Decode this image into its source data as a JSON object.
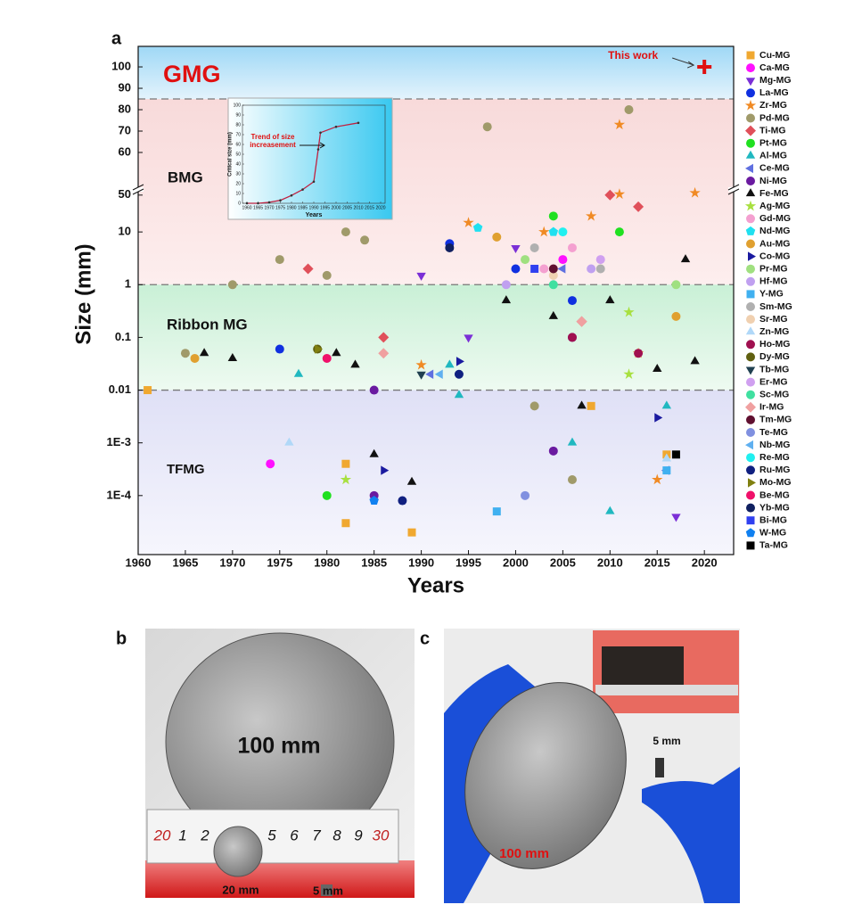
{
  "chart_data": {
    "type": "scatter",
    "panel": "a",
    "xlabel": "Years",
    "ylabel": "Size (mm)",
    "xlim": [
      1960,
      2023.1
    ],
    "xticks": [
      1960,
      1965,
      1970,
      1975,
      1980,
      1985,
      1990,
      1995,
      2000,
      2005,
      2010,
      2015,
      2020
    ],
    "ylim": [
      7.6e-06,
      58
    ],
    "yscale": "log",
    "yticks": [
      {
        "value": 0.0001,
        "label": "1E-4"
      },
      {
        "value": 0.001,
        "label": "1E-3"
      },
      0.01,
      0.1,
      1,
      10
    ],
    "ylim_upper": [
      43.75,
      109.6
    ],
    "yticks_upper": [
      50,
      60,
      70,
      80,
      90,
      100
    ],
    "dashed_lines": [
      85,
      1,
      0.01
    ],
    "regions": [
      "GMG",
      "BMG",
      "Ribbon MG",
      "TFMG"
    ],
    "highlight": {
      "label": "This work",
      "x": 2020,
      "y": 100,
      "color": "#e01010"
    },
    "series": [
      {
        "name": "Cu-MG",
        "color": "#f0a830",
        "marker": "square",
        "x": [
          1961,
          1982,
          1982,
          1989,
          2008,
          2016
        ],
        "values": [
          0.01,
          0.0004,
          3e-05,
          2e-05,
          0.005,
          0.0006
        ]
      },
      {
        "name": "Ca-MG",
        "color": "#ff10ff",
        "marker": "circle",
        "x": [
          1974,
          2005
        ],
        "values": [
          0.0004,
          3
        ]
      },
      {
        "name": "Mg-MG",
        "color": "#7b2fd6",
        "marker": "triangle-down",
        "x": [
          1990,
          1995,
          2000,
          2017
        ],
        "values": [
          1.5,
          0.1,
          5,
          4e-05
        ]
      },
      {
        "name": "La-MG",
        "color": "#1030e0",
        "marker": "circle",
        "x": [
          1975,
          1993,
          2000,
          2006
        ],
        "values": [
          0.06,
          6,
          2,
          0.5
        ]
      },
      {
        "name": "Zr-MG",
        "color": "#f08a24",
        "marker": "star",
        "x": [
          1990,
          1995,
          2003,
          2008,
          2011,
          2013,
          2019,
          2015,
          2011
        ],
        "values": [
          0.03,
          15,
          10,
          20,
          73,
          0.05,
          55,
          0.0002,
          52
        ]
      },
      {
        "name": "Pd-MG",
        "color": "#a09a6a",
        "marker": "circle",
        "x": [
          1965,
          1970,
          1975,
          1980,
          1982,
          1984,
          1997,
          2012,
          2002,
          2006
        ],
        "values": [
          0.05,
          1,
          3,
          1.5,
          10,
          7,
          72,
          80,
          0.005,
          0.0002
        ]
      },
      {
        "name": "Ti-MG",
        "color": "#e0505a",
        "marker": "diamond",
        "x": [
          1978,
          1986,
          2007,
          2010,
          2013
        ],
        "values": [
          2,
          0.1,
          0.2,
          50,
          30
        ]
      },
      {
        "name": "Pt-MG",
        "color": "#20e020",
        "marker": "circle",
        "x": [
          1980,
          2004,
          2011
        ],
        "values": [
          0.0001,
          20,
          10
        ]
      },
      {
        "name": "Al-MG",
        "color": "#20b8c0",
        "marker": "triangle-up",
        "x": [
          1977,
          1993,
          1994,
          2006,
          2010,
          2016
        ],
        "values": [
          0.02,
          0.03,
          0.008,
          0.001,
          5e-05,
          0.005
        ]
      },
      {
        "name": "Ce-MG",
        "color": "#6070e0",
        "marker": "triangle-left",
        "x": [
          1991,
          2005,
          2016
        ],
        "values": [
          0.02,
          2,
          0.0003
        ]
      },
      {
        "name": "Ni-MG",
        "color": "#6a1aa0",
        "marker": "circle",
        "x": [
          1985,
          1985,
          2004,
          2006
        ],
        "values": [
          0.01,
          0.0001,
          0.0007,
          0.1
        ]
      },
      {
        "name": "Fe-MG",
        "color": "#111111",
        "marker": "triangle-up",
        "x": [
          1967,
          1970,
          1981,
          1983,
          1985,
          1989,
          1999,
          2004,
          2007,
          2010,
          2015,
          2018,
          2019
        ],
        "values": [
          0.05,
          0.04,
          0.05,
          0.03,
          0.0006,
          0.00018,
          0.5,
          0.25,
          0.005,
          0.5,
          0.025,
          3,
          0.035
        ]
      },
      {
        "name": "Ag-MG",
        "color": "#a8e040",
        "marker": "star",
        "x": [
          1982,
          2012,
          2012
        ],
        "values": [
          0.0002,
          0.3,
          0.02
        ]
      },
      {
        "name": "Gd-MG",
        "color": "#f4a0d0",
        "marker": "circle",
        "x": [
          2003,
          2006
        ],
        "values": [
          2,
          5
        ]
      },
      {
        "name": "Nd-MG",
        "color": "#20e0f0",
        "marker": "pentagon",
        "x": [
          1996,
          2004
        ],
        "values": [
          12,
          10
        ]
      },
      {
        "name": "Au-MG",
        "color": "#e0a030",
        "marker": "circle",
        "x": [
          1966,
          1998,
          2017
        ],
        "values": [
          0.04,
          8,
          0.25
        ]
      },
      {
        "name": "Co-MG",
        "color": "#1a1aa0",
        "marker": "triangle-right",
        "x": [
          1986,
          1994,
          2015
        ],
        "values": [
          0.0003,
          0.035,
          0.003
        ]
      },
      {
        "name": "Pr-MG",
        "color": "#a0e080",
        "marker": "circle",
        "x": [
          2001,
          2017
        ],
        "values": [
          3,
          1
        ]
      },
      {
        "name": "Hf-MG",
        "color": "#c0a0f0",
        "marker": "circle",
        "x": [
          1999,
          2008
        ],
        "values": [
          1,
          2
        ]
      },
      {
        "name": "Y-MG",
        "color": "#40b0f0",
        "marker": "square",
        "x": [
          1998,
          2016
        ],
        "values": [
          5e-05,
          0.0003
        ]
      },
      {
        "name": "Sm-MG",
        "color": "#b0b0b0",
        "marker": "circle",
        "x": [
          2002,
          2009
        ],
        "values": [
          5,
          2
        ]
      },
      {
        "name": "Sr-MG",
        "color": "#f0d0b0",
        "marker": "circle",
        "x": [
          2004
        ],
        "values": [
          1.5
        ]
      },
      {
        "name": "Zn-MG",
        "color": "#b0d8f8",
        "marker": "triangle-up",
        "x": [
          1976,
          2016
        ],
        "values": [
          0.001,
          0.0005
        ]
      },
      {
        "name": "Ho-MG",
        "color": "#a01050",
        "marker": "circle",
        "x": [
          2006,
          2013
        ],
        "values": [
          0.1,
          0.05
        ]
      },
      {
        "name": "Dy-MG",
        "color": "#606010",
        "marker": "circle",
        "x": [
          1979
        ],
        "values": [
          0.06
        ]
      },
      {
        "name": "Tb-MG",
        "color": "#204050",
        "marker": "triangle-down",
        "x": [
          1990
        ],
        "values": [
          0.02
        ]
      },
      {
        "name": "Er-MG",
        "color": "#d0a0f0",
        "marker": "circle",
        "x": [
          2009
        ],
        "values": [
          3
        ]
      },
      {
        "name": "Sc-MG",
        "color": "#40e0a0",
        "marker": "circle",
        "x": [
          2004
        ],
        "values": [
          1
        ]
      },
      {
        "name": "Ir-MG",
        "color": "#f0a0a0",
        "marker": "diamond",
        "x": [
          1986,
          2007
        ],
        "values": [
          0.05,
          0.2
        ]
      },
      {
        "name": "Tm-MG",
        "color": "#601030",
        "marker": "circle",
        "x": [
          2004
        ],
        "values": [
          2
        ]
      },
      {
        "name": "Te-MG",
        "color": "#8090e0",
        "marker": "circle",
        "x": [
          2001
        ],
        "values": [
          0.0001
        ]
      },
      {
        "name": "Nb-MG",
        "color": "#60b0f0",
        "marker": "triangle-left",
        "x": [
          1992
        ],
        "values": [
          0.02
        ]
      },
      {
        "name": "Re-MG",
        "color": "#20f0f0",
        "marker": "circle",
        "x": [
          2005
        ],
        "values": [
          10
        ]
      },
      {
        "name": "Ru-MG",
        "color": "#102080",
        "marker": "circle",
        "x": [
          1988,
          1994
        ],
        "values": [
          8e-05,
          0.02
        ]
      },
      {
        "name": "Mo-MG",
        "color": "#808010",
        "marker": "triangle-right",
        "x": [
          1979
        ],
        "values": [
          0.06
        ]
      },
      {
        "name": "Be-MG",
        "color": "#f0106a",
        "marker": "circle",
        "x": [
          1980
        ],
        "values": [
          0.04
        ]
      },
      {
        "name": "Yb-MG",
        "color": "#102060",
        "marker": "circle",
        "x": [
          1993
        ],
        "values": [
          5
        ]
      },
      {
        "name": "Bi-MG",
        "color": "#3040f0",
        "marker": "square",
        "x": [
          2002
        ],
        "values": [
          2
        ]
      },
      {
        "name": "W-MG",
        "color": "#1080f0",
        "marker": "pentagon",
        "x": [
          1985
        ],
        "values": [
          8e-05
        ]
      },
      {
        "name": "Ta-MG",
        "color": "#000000",
        "marker": "square",
        "x": [
          2017
        ],
        "values": [
          0.0006
        ]
      }
    ],
    "inset": {
      "type": "line",
      "xlabel": "Years",
      "ylabel": "Critical size (mm)",
      "annotation": [
        "Trend of size",
        "increasement"
      ],
      "xlim": [
        1958,
        2022
      ],
      "xticks": [
        1960,
        1965,
        1970,
        1975,
        1980,
        1985,
        1990,
        1995,
        2000,
        2005,
        2010,
        2015,
        2020
      ],
      "ylim": [
        0,
        100
      ],
      "yticks": [
        0,
        10,
        20,
        30,
        40,
        50,
        60,
        70,
        80,
        90,
        100
      ],
      "x": [
        1960,
        1965,
        1970,
        1975,
        1980,
        1985,
        1990,
        1992,
        1993,
        2000,
        2010
      ],
      "values": [
        0,
        0,
        1,
        3,
        8,
        14,
        22,
        55,
        72,
        78,
        82
      ],
      "color": "#c02040"
    }
  },
  "panels": [
    {
      "label": "b",
      "annotations": [
        "100 mm",
        "20 mm",
        "5 mm"
      ],
      "ruler": [
        "20",
        "1",
        "2",
        "5",
        "6",
        "7",
        "8",
        "9",
        "30"
      ]
    },
    {
      "label": "c",
      "annotations": [
        "5 mm",
        "100 mm"
      ]
    }
  ]
}
